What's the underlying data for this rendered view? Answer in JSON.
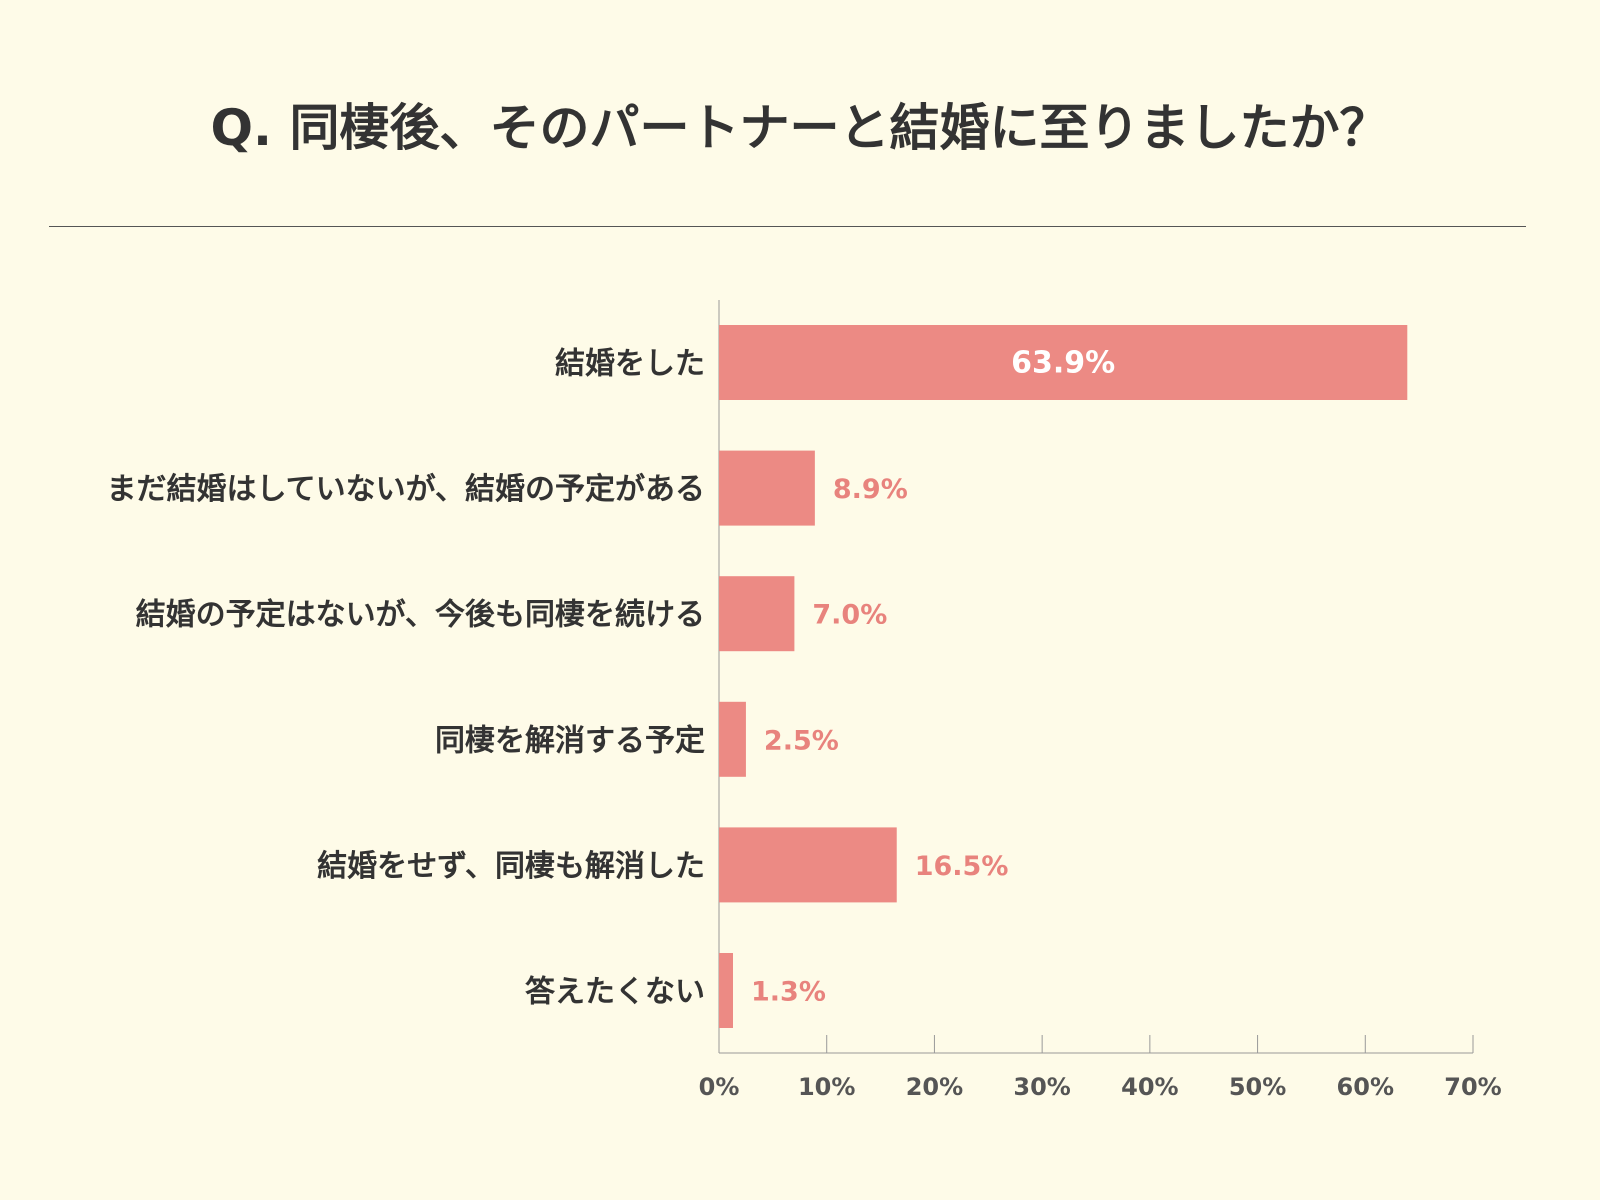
{
  "title": "Q. 同棲後、そのパートナーと結婚に至りましたか？",
  "chart_data": {
    "type": "bar",
    "orientation": "horizontal",
    "categories": [
      "結婚をした",
      "まだ結婚はしていないが、結婚の予定がある",
      "結婚の予定はないが、今後も同棲を続ける",
      "同棲を解消する予定",
      "結婚をせず、同棲も解消した",
      "答えたくない"
    ],
    "values": [
      63.9,
      8.9,
      7.0,
      2.5,
      16.5,
      1.3
    ],
    "data_labels": [
      "63.9%",
      "8.9%",
      "7.0%",
      "2.5%",
      "16.5%",
      "1.3%"
    ],
    "xlim": [
      0,
      70
    ],
    "xticks": [
      "0%",
      "10%",
      "20%",
      "30%",
      "40%",
      "50%",
      "60%",
      "70%"
    ],
    "grid": false,
    "bar_color": "#EC8A84",
    "label_color": "#E8837D"
  }
}
